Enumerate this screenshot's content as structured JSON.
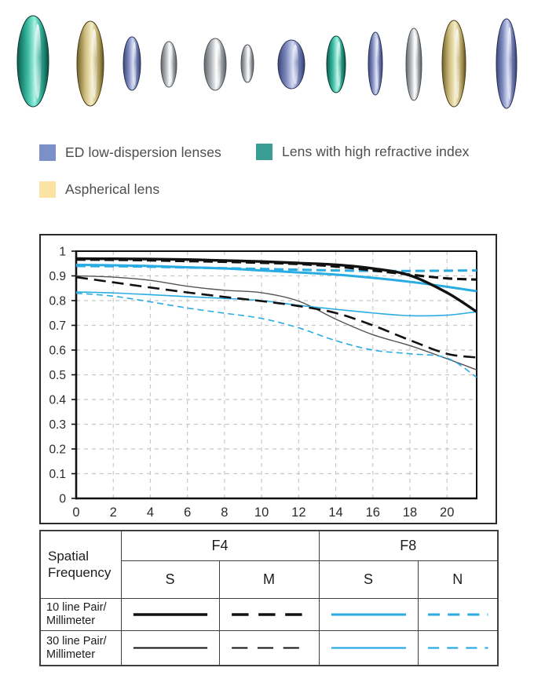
{
  "palette": {
    "chart_blue": "#2aace3",
    "chart_black": "#111111",
    "chart_thin_black": "#555555",
    "grid_gray": "#c8c8c8",
    "axis_text": "#2b2b2b",
    "legend_text": "#4d4d4d",
    "table_border": "#3f3f3f",
    "lens_teal": "#2fae97",
    "lens_gold": "#cdbc7c",
    "lens_blue": "#7d89bd",
    "lens_silver": "#b4b8bd"
  },
  "lens_diagram": {
    "description": "Lens construction diagram with 12 elements",
    "elements": [
      {
        "type": "lens-high-refractive-index",
        "color_key": "teal"
      },
      {
        "type": "lens-aspherical",
        "color_key": "gold"
      },
      {
        "type": "lens-ed-low-dispersion",
        "color_key": "blue"
      },
      {
        "type": "lens-standard",
        "color_key": "silver"
      },
      {
        "type": "lens-standard",
        "color_key": "silver"
      },
      {
        "type": "lens-standard",
        "color_key": "silver"
      },
      {
        "type": "lens-ed-low-dispersion",
        "color_key": "blue"
      },
      {
        "type": "lens-high-refractive-index",
        "color_key": "teal"
      },
      {
        "type": "lens-ed-low-dispersion",
        "color_key": "blue"
      },
      {
        "type": "lens-standard",
        "color_key": "silver"
      },
      {
        "type": "lens-aspherical",
        "color_key": "gold"
      },
      {
        "type": "lens-ed-low-dispersion",
        "color_key": "blue"
      }
    ]
  },
  "legend": {
    "items": [
      {
        "label": "ED low-dispersion lenses",
        "color": "#7b90c8"
      },
      {
        "label": "Lens with high refractive index",
        "color": "#3a9e94"
      },
      {
        "label": "Aspherical lens",
        "color": "#fbe3a3"
      }
    ]
  },
  "chart_data": {
    "type": "line",
    "title": "",
    "xlabel": "",
    "ylabel": "",
    "grid": true,
    "xlim": [
      0,
      21.6
    ],
    "ylim": [
      0,
      1
    ],
    "xticks": [
      0,
      2,
      4,
      6,
      8,
      10,
      12,
      14,
      16,
      18,
      20
    ],
    "yticks": [
      0,
      0.1,
      0.2,
      0.3,
      0.4,
      0.5,
      0.6,
      0.7,
      0.8,
      0.9,
      1
    ],
    "x": [
      0,
      2,
      4,
      6,
      8,
      10,
      12,
      14,
      16,
      18,
      20,
      21.6
    ],
    "series": [
      {
        "name": "F4 S 10 line pair/mm",
        "color": "#111111",
        "width": 3.4,
        "dash": null,
        "values": [
          0.97,
          0.969,
          0.968,
          0.966,
          0.962,
          0.958,
          0.952,
          0.945,
          0.93,
          0.902,
          0.832,
          0.755
        ]
      },
      {
        "name": "F4 M 10 line pair/mm",
        "color": "#111111",
        "width": 3.1,
        "dash": "12,6",
        "values": [
          0.966,
          0.965,
          0.963,
          0.96,
          0.957,
          0.953,
          0.948,
          0.938,
          0.922,
          0.905,
          0.89,
          0.885
        ]
      },
      {
        "name": "F8 S 10 line pair/mm",
        "color": "#2aace3",
        "width": 3.0,
        "dash": null,
        "values": [
          0.945,
          0.943,
          0.94,
          0.935,
          0.93,
          0.922,
          0.914,
          0.905,
          0.892,
          0.876,
          0.856,
          0.838
        ]
      },
      {
        "name": "F8 N 10 line pair/mm",
        "color": "#2aace3",
        "width": 3.0,
        "dash": "12,6",
        "values": [
          0.94,
          0.939,
          0.937,
          0.934,
          0.931,
          0.928,
          0.925,
          0.922,
          0.92,
          0.92,
          0.921,
          0.922
        ]
      },
      {
        "name": "F4 S 30 line pair/mm",
        "color": "#555555",
        "width": 1.4,
        "dash": null,
        "values": [
          0.9,
          0.895,
          0.882,
          0.858,
          0.842,
          0.832,
          0.798,
          0.725,
          0.662,
          0.618,
          0.565,
          0.52
        ]
      },
      {
        "name": "F4 M 30 line pair/mm",
        "color": "#111111",
        "width": 2.6,
        "dash": "15,8",
        "values": [
          0.895,
          0.874,
          0.853,
          0.833,
          0.815,
          0.798,
          0.778,
          0.75,
          0.7,
          0.64,
          0.585,
          0.57
        ]
      },
      {
        "name": "F8 S 30 line pair/mm",
        "color": "#2aace3",
        "width": 1.6,
        "dash": null,
        "values": [
          0.835,
          0.831,
          0.824,
          0.816,
          0.809,
          0.8,
          0.781,
          0.765,
          0.75,
          0.739,
          0.741,
          0.755
        ]
      },
      {
        "name": "F8 N 30 line pair/mm",
        "color": "#2aace3",
        "width": 1.6,
        "dash": "8,5",
        "values": [
          0.83,
          0.818,
          0.795,
          0.77,
          0.749,
          0.728,
          0.69,
          0.638,
          0.6,
          0.585,
          0.568,
          0.49
        ]
      }
    ]
  },
  "table": {
    "corner_label": "Spatial Frequency",
    "col_groups": [
      {
        "label": "F4",
        "subcols": [
          "S",
          "M"
        ]
      },
      {
        "label": "F8",
        "subcols": [
          "S",
          "N"
        ]
      }
    ],
    "rows": [
      {
        "label_line1": "10 line Pair/",
        "label_line2": "Millimeter",
        "samples": [
          {
            "color": "#111111",
            "width": 3.4,
            "dash": null
          },
          {
            "color": "#111111",
            "width": 3.4,
            "dash": "17,10"
          },
          {
            "color": "#2aace3",
            "width": 3.0,
            "dash": null
          },
          {
            "color": "#2aace3",
            "width": 3.0,
            "dash": "15,10"
          }
        ]
      },
      {
        "label_line1": "30 line Pair/",
        "label_line2": "Millimeter",
        "samples": [
          {
            "color": "#111111",
            "width": 1.8,
            "dash": null
          },
          {
            "color": "#111111",
            "width": 1.8,
            "dash": "16,10"
          },
          {
            "color": "#2aace3",
            "width": 2.0,
            "dash": null
          },
          {
            "color": "#2aace3",
            "width": 2.0,
            "dash": "14,10"
          }
        ]
      }
    ]
  }
}
